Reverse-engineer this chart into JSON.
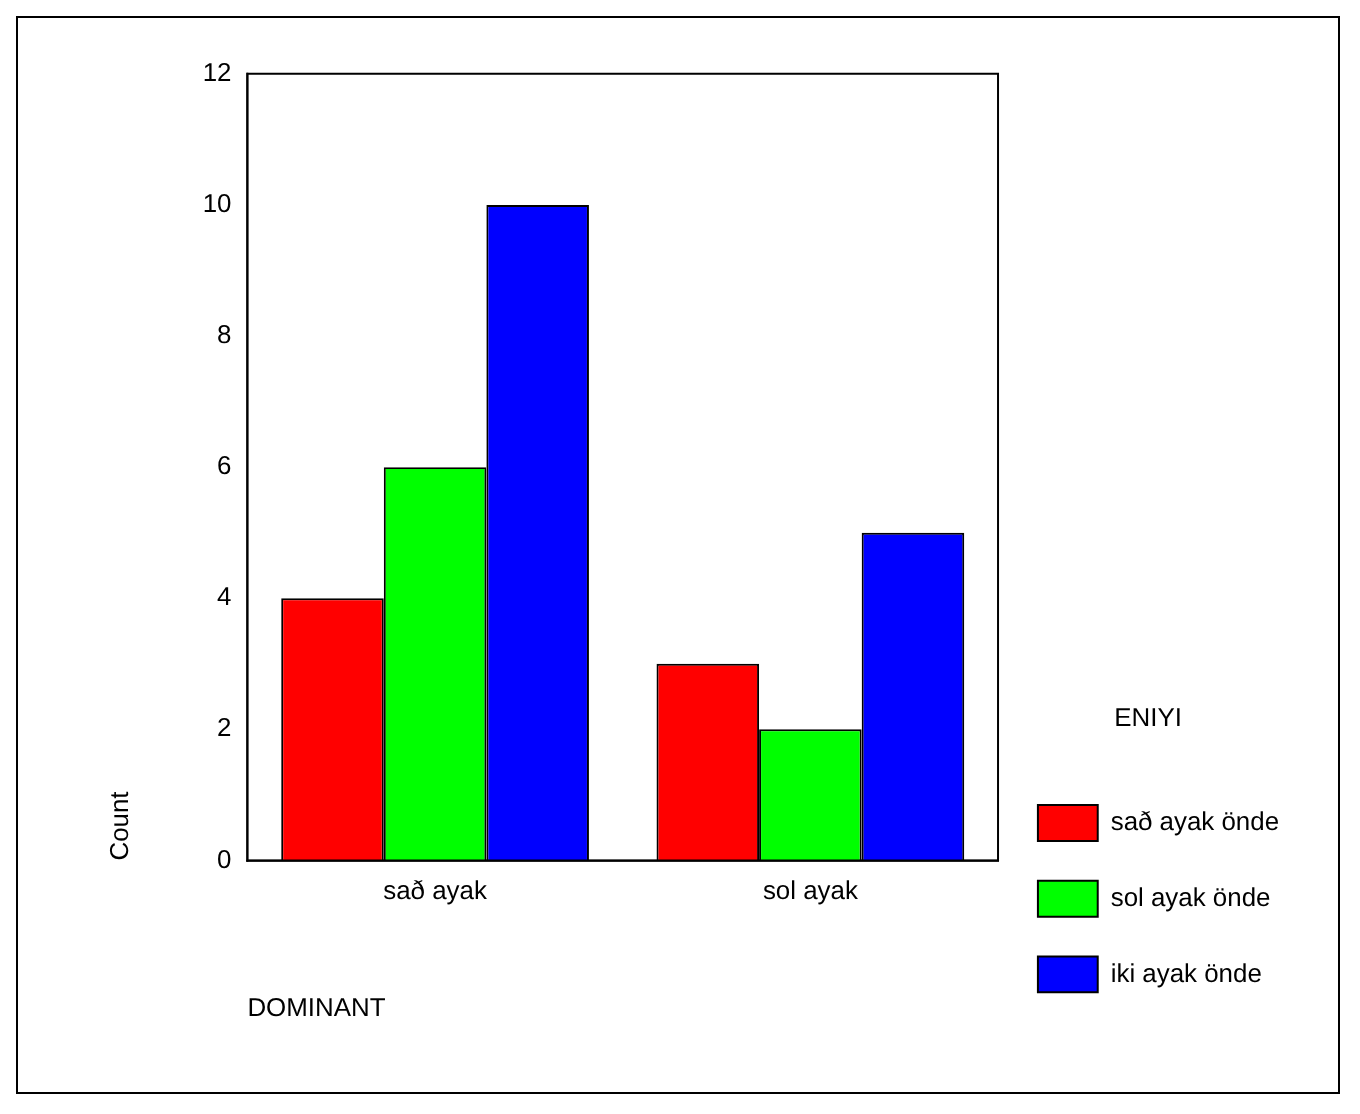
{
  "chart_data": {
    "type": "bar",
    "xlabel": "DOMINANT",
    "ylabel": "Count",
    "legend_title": "ENIYI",
    "categories": [
      "sað ayak",
      "sol ayak"
    ],
    "series": [
      {
        "name": "sað ayak önde",
        "color": "#ff0000",
        "values": [
          4,
          3
        ]
      },
      {
        "name": "sol ayak önde",
        "color": "#00ff00",
        "values": [
          6,
          2
        ]
      },
      {
        "name": "iki ayak önde",
        "color": "#0000ff",
        "values": [
          10,
          5
        ]
      }
    ],
    "ylim": [
      0,
      12
    ],
    "yticks": [
      0,
      2,
      4,
      6,
      8,
      10,
      12
    ],
    "grid": false,
    "legend": "right"
  }
}
